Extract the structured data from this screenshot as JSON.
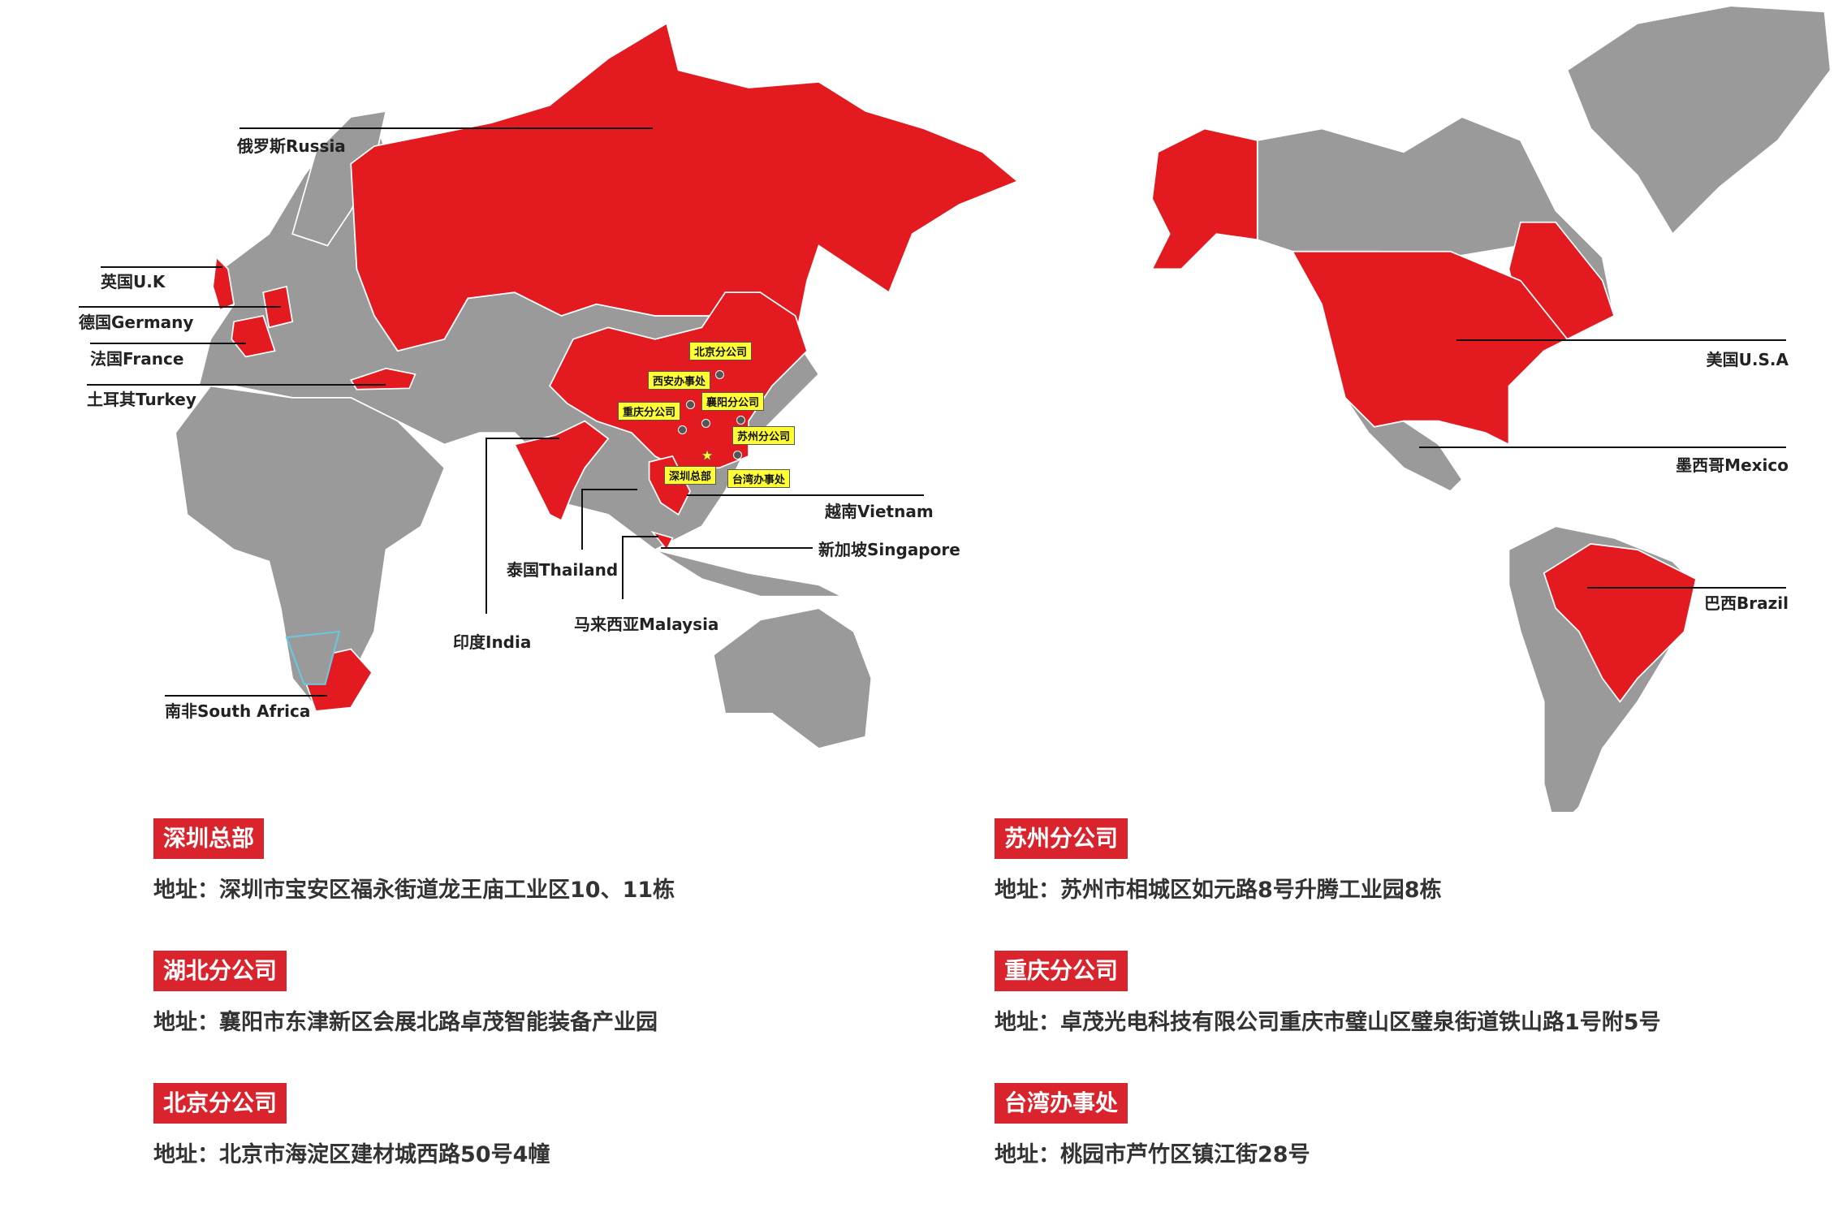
{
  "colors": {
    "highlight": "#e31a1f",
    "land": "#9a9a9a",
    "tag": "#ffff33",
    "badge": "#d9232d"
  },
  "countries": {
    "russia": "俄罗斯Russia",
    "uk": "英国U.K",
    "germany": "德国Germany",
    "france": "法国France",
    "turkey": "土耳其Turkey",
    "india": "印度India",
    "thailand": "泰国Thailand",
    "vietnam": "越南Vietnam",
    "singapore": "新加坡Singapore",
    "malaysia": "马来西亚Malaysia",
    "south_africa": "南非South Africa",
    "usa": "美国U.S.A",
    "mexico": "墨西哥Mexico",
    "brazil": "巴西Brazil"
  },
  "china_sites": {
    "beijing": "北京分公司",
    "xian": "西安办事处",
    "chongqing": "重庆分公司",
    "xiangyang": "襄阳分公司",
    "suzhou": "苏州分公司",
    "shenzhen": "深圳总部",
    "taiwan": "台湾办事处"
  },
  "offices": [
    {
      "name": "深圳总部",
      "address": "地址：深圳市宝安区福永街道龙王庙工业区10、11栋"
    },
    {
      "name": "苏州分公司",
      "address": "地址：苏州市相城区如元路8号升腾工业园8栋"
    },
    {
      "name": "湖北分公司",
      "address": "地址：襄阳市东津新区会展北路卓茂智能装备产业园"
    },
    {
      "name": "重庆分公司",
      "address": "地址：卓茂光电科技有限公司重庆市璧山区璧泉街道铁山路1号附5号"
    },
    {
      "name": "北京分公司",
      "address": "地址：北京市海淀区建材城西路50号4幢"
    },
    {
      "name": "台湾办事处",
      "address": "地址：桃园市芦竹区镇江街28号"
    }
  ]
}
